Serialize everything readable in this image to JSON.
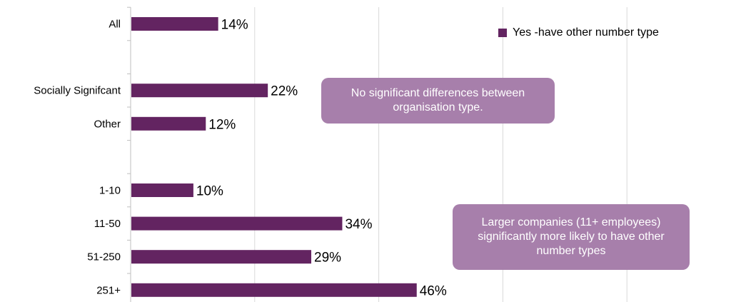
{
  "chart_data": {
    "type": "bar",
    "orientation": "horizontal",
    "categories": [
      "All",
      "",
      "Socially Signifcant",
      "Other",
      "",
      "1-10",
      "11-50",
      "51-250",
      "251+"
    ],
    "series": [
      {
        "name": "Yes -have other number type",
        "values": [
          14,
          null,
          22,
          12,
          null,
          10,
          34,
          29,
          46
        ],
        "labels": [
          "14%",
          "",
          "22%",
          "12%",
          "",
          "10%",
          "34%",
          "29%",
          "46%"
        ]
      }
    ],
    "xlim": [
      0,
      100
    ],
    "grid": true,
    "legend_position": "top-right",
    "colors": {
      "bar": "#632461",
      "grid": "#d9d9d9",
      "axis": "#bfbfbf",
      "callout": "#a77fab"
    },
    "annotations": [
      "No significant differences between organisation type.",
      "Larger companies (11+ employees) significantly more likely to have other number types"
    ]
  }
}
